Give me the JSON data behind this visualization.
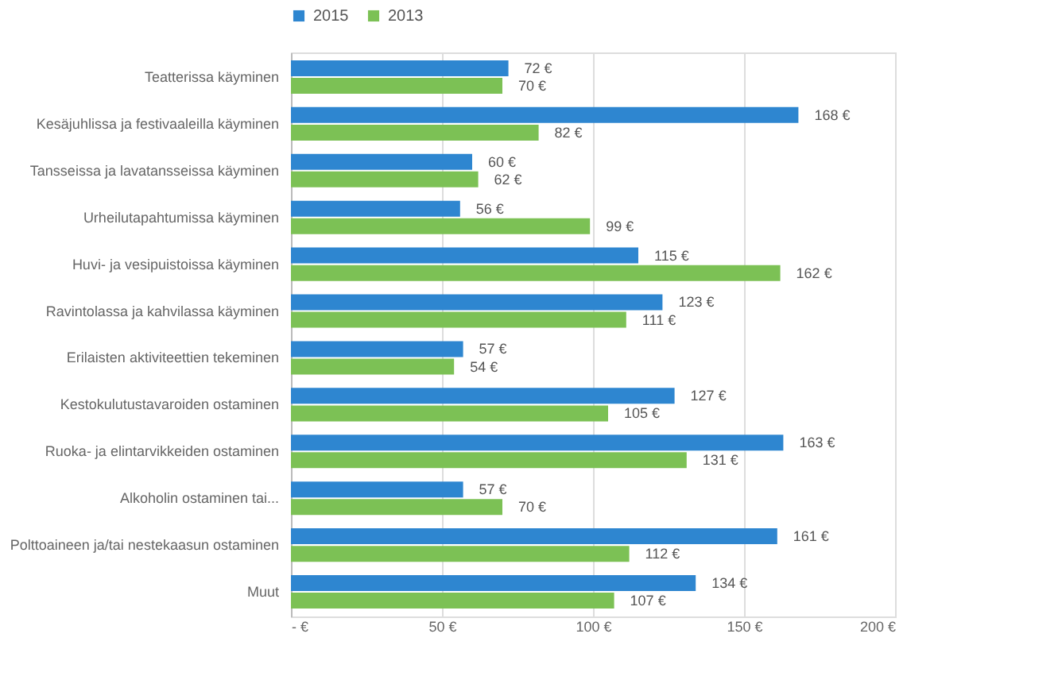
{
  "chart_data": {
    "type": "bar",
    "orientation": "horizontal",
    "categories": [
      "Teatterissa käyminen",
      "Kesäjuhlissa ja festivaaleilla käyminen",
      "Tansseissa ja lavatansseissa käyminen",
      "Urheilutapahtumissa käyminen",
      "Huvi- ja vesipuistoissa käyminen",
      "Ravintolassa ja kahvilassa käyminen",
      "Erilaisten aktiviteettien tekeminen",
      "Kestokulutustavaroiden ostaminen",
      "Ruoka- ja elintarvikkeiden ostaminen",
      "Alkoholin ostaminen tai...",
      "Polttoaineen ja/tai nestekaasun ostaminen",
      "Muut"
    ],
    "series": [
      {
        "name": "2015",
        "color": "#2e86d0",
        "values": [
          72,
          168,
          60,
          56,
          115,
          123,
          57,
          127,
          163,
          57,
          161,
          134
        ],
        "value_labels": [
          "72 €",
          "168 €",
          "60 €",
          "56 €",
          "115 €",
          "123 €",
          "57 €",
          "127 €",
          "163 €",
          "57 €",
          "161 €",
          "134 €"
        ]
      },
      {
        "name": "2013",
        "color": "#7cc155",
        "values": [
          70,
          82,
          62,
          99,
          162,
          111,
          54,
          105,
          131,
          70,
          112,
          107
        ],
        "value_labels": [
          "70 €",
          "82 €",
          "62 €",
          "99 €",
          "162 €",
          "111 €",
          "54 €",
          "105 €",
          "131 €",
          "70 €",
          "112 €",
          "107 €"
        ]
      }
    ],
    "xlim": [
      0,
      200
    ],
    "xticks": [
      {
        "value": 0,
        "label": "- €"
      },
      {
        "value": 50,
        "label": "50 €"
      },
      {
        "value": 100,
        "label": "100 €"
      },
      {
        "value": 150,
        "label": "150 €"
      },
      {
        "value": 200,
        "label": "200 €"
      }
    ],
    "grid": "x",
    "legend": "top"
  }
}
